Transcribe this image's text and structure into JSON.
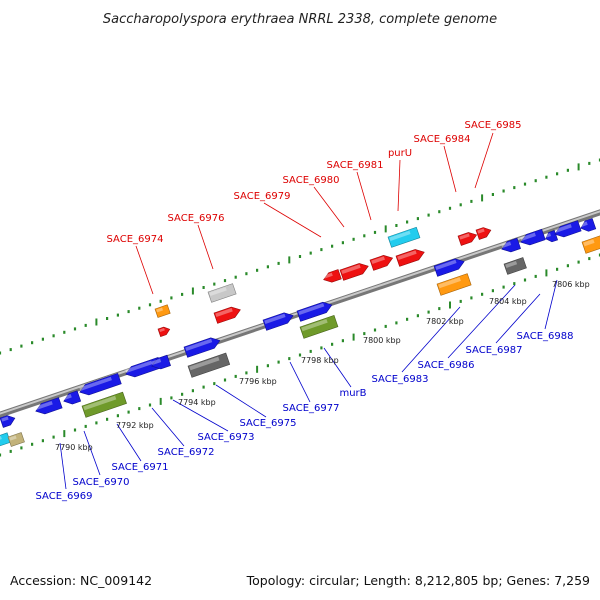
{
  "title": "Saccharopolyspora erythraea NRRL 2338, complete genome",
  "footer": {
    "accession": "Accession: NC_009142",
    "topology": "Topology: circular; Length: 8,212,805 bp; Genes: 7,259"
  },
  "colors": {
    "top_label": "#dd0000",
    "bottom_label": "#0000cc",
    "tick": "#2a8a2a",
    "backbone": "#888888",
    "red": "#ee1111",
    "blue": "#1a1ae6",
    "cyan": "#22ccee",
    "orange": "#ff9911",
    "olive": "#6f9a2a",
    "gray": "#666666",
    "silver": "#c8c8c8",
    "khaki": "#c2b27a"
  },
  "kbp_labels": [
    "7790 kbp",
    "7792 kbp",
    "7794 kbp",
    "7796 kbp",
    "7798 kbp",
    "7800 kbp",
    "7802 kbp",
    "7804 kbp",
    "7806 kbp"
  ],
  "top_labels": [
    "SACE_6974",
    "SACE_6976",
    "SACE_6979",
    "SACE_6980",
    "SACE_6981",
    "purU",
    "SACE_6984",
    "SACE_6985"
  ],
  "bottom_labels": [
    "SACE_6969",
    "SACE_6970",
    "SACE_6971",
    "SACE_6972",
    "SACE_6973",
    "SACE_6975",
    "SACE_6977",
    "murB",
    "SACE_6983",
    "SACE_6986",
    "SACE_6987",
    "SACE_6988"
  ]
}
